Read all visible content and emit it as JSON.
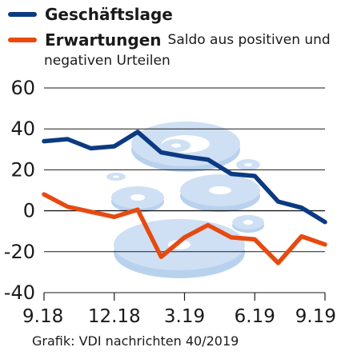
{
  "colors": {
    "series_1": "#0b3a82",
    "series_2": "#e64a10",
    "decor": "#cfe0f4"
  },
  "chart_data": {
    "type": "line",
    "title": "",
    "xlabel": "",
    "ylabel": "",
    "ylim": [
      -40,
      60
    ],
    "yticks": [
      60,
      40,
      20,
      0,
      -20,
      -40
    ],
    "xticks": [
      {
        "label": "9.18",
        "index": 0
      },
      {
        "label": "12.18",
        "index": 3
      },
      {
        "label": "3.19",
        "index": 6
      },
      {
        "label": "6.19",
        "index": 9
      },
      {
        "label": "9.19",
        "index": 12
      }
    ],
    "x": [
      "9.18",
      "10.18",
      "11.18",
      "12.18",
      "1.19",
      "2.19",
      "3.19",
      "4.19",
      "5.19",
      "6.19",
      "7.19",
      "8.19",
      "9.19"
    ],
    "grid": true,
    "series": [
      {
        "name": "Geschäftslage",
        "values": [
          34,
          35,
          30.5,
          31.5,
          38.5,
          28.5,
          26.5,
          25,
          18,
          17,
          4.5,
          1.5,
          -5.5
        ]
      },
      {
        "name": "Erwartungen",
        "values": [
          8,
          2,
          -0.5,
          -3,
          0.5,
          -22.5,
          -13,
          -7,
          -13,
          -14,
          -25.5,
          -12.5,
          -16.5
        ]
      }
    ]
  },
  "legend": {
    "item_1_name": "Geschäftslage",
    "item_2_name": "Erwartungen",
    "note_line_1": "Saldo aus positiven und",
    "note_line_2": "negativen Urteilen"
  },
  "source": "Grafik: VDI nachrichten 40/2019"
}
